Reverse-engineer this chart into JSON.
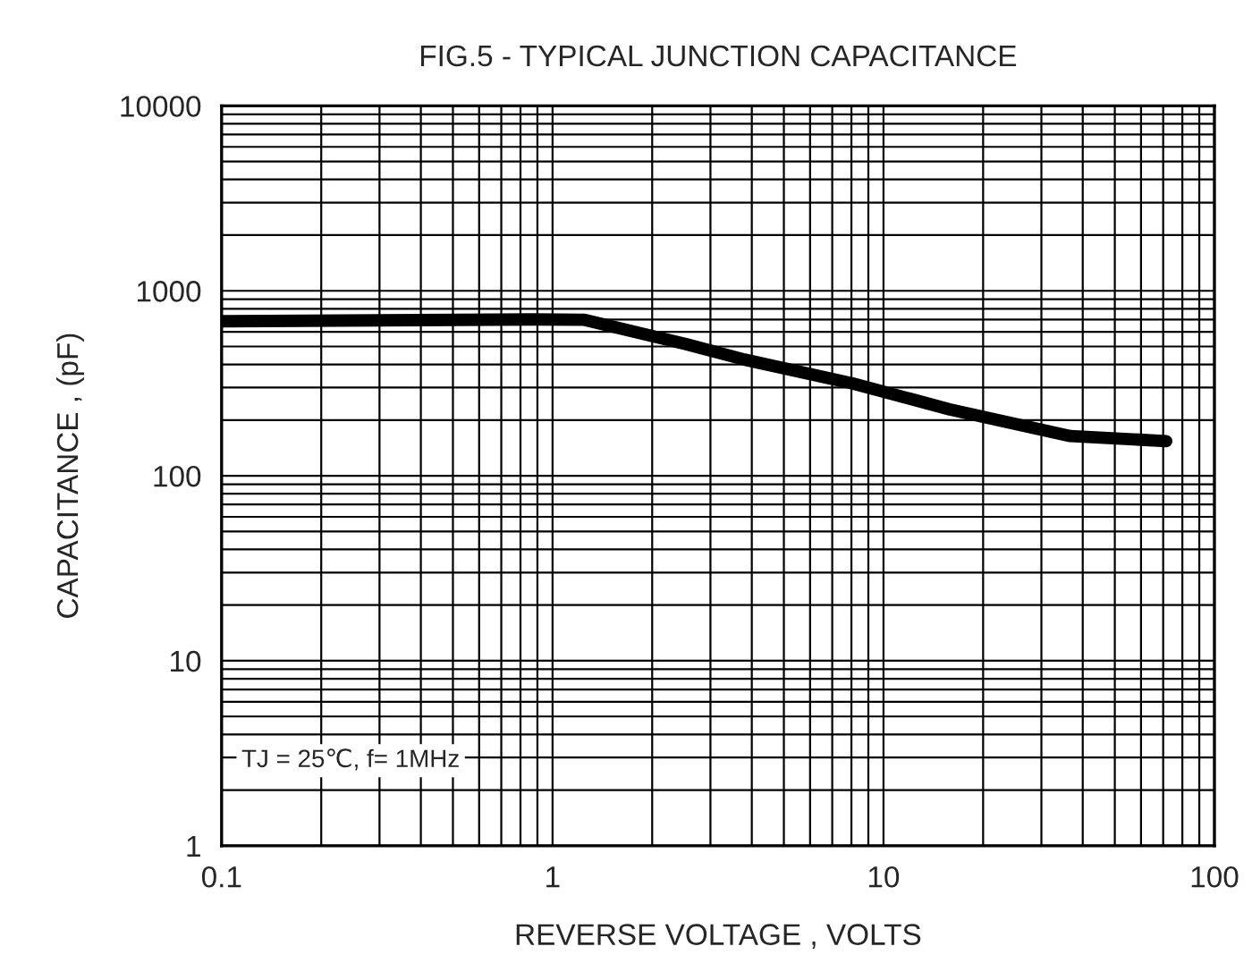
{
  "chart_data": {
    "type": "line",
    "title": "FIG.5 - TYPICAL JUNCTION CAPACITANCE",
    "xlabel": "REVERSE VOLTAGE , VOLTS",
    "ylabel": "CAPACITANCE , (pF)",
    "log": "xy",
    "xlim": [
      0.1,
      100
    ],
    "ylim": [
      1,
      10000
    ],
    "xticks": [
      0.1,
      1,
      10,
      100
    ],
    "yticks": [
      1,
      10,
      100,
      1000,
      10000
    ],
    "grid": true,
    "legend": false,
    "marker": "none",
    "line_style": "solid",
    "series": [
      {
        "color": "#000000",
        "x": [
          0.1,
          0.88,
          1.25,
          2.54,
          3.8,
          8.1,
          15.8,
          36.7,
          71.5
        ],
        "values": [
          685,
          700,
          697,
          514,
          425,
          315,
          229,
          164,
          154
        ]
      }
    ],
    "annotations": [
      "TJ = 25℃, f= 1MHz"
    ]
  }
}
